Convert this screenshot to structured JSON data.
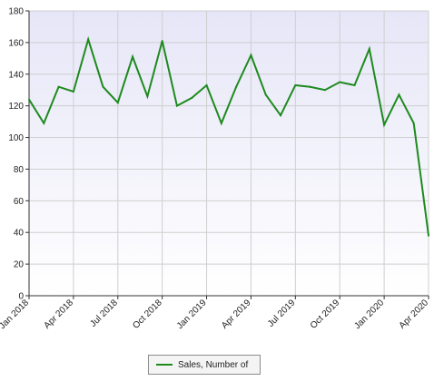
{
  "chart_data": {
    "type": "line",
    "title": "",
    "xlabel": "",
    "ylabel": "",
    "x": [
      "Jan 2018",
      "Feb 2018",
      "Mar 2018",
      "Apr 2018",
      "May 2018",
      "Jun 2018",
      "Jul 2018",
      "Aug 2018",
      "Sep 2018",
      "Oct 2018",
      "Nov 2018",
      "Dec 2018",
      "Jan 2019",
      "Feb 2019",
      "Mar 2019",
      "Apr 2019",
      "May 2019",
      "Jun 2019",
      "Jul 2019",
      "Aug 2019",
      "Sep 2019",
      "Oct 2019",
      "Nov 2019",
      "Dec 2019",
      "Jan 2020",
      "Feb 2020",
      "Mar 2020",
      "Apr 2020"
    ],
    "x_tick_labels": [
      "Jan 2018",
      "Apr 2018",
      "Jul 2018",
      "Oct 2018",
      "Jan 2019",
      "Apr 2019",
      "Jul 2019",
      "Oct 2019",
      "Jan 2020",
      "Apr 2020"
    ],
    "series": [
      {
        "name": "Sales, Number of",
        "values": [
          124,
          109,
          132,
          129,
          162,
          132,
          122,
          151,
          126,
          161,
          120,
          125,
          133,
          109,
          132,
          152,
          127,
          114,
          133,
          132,
          130,
          135,
          133,
          156,
          108,
          127,
          109,
          38
        ]
      }
    ],
    "ylim": [
      0,
      180
    ],
    "y_ticks": [
      0,
      20,
      40,
      60,
      80,
      100,
      120,
      140,
      160,
      180
    ],
    "grid": true,
    "legend_position": "bottom-center",
    "colors": {
      "line": "#1e8a1e",
      "grid": "#cfcfcf",
      "bg_top": "#e6e6f8",
      "bg_bottom": "#ffffff",
      "axis": "#333333"
    }
  }
}
